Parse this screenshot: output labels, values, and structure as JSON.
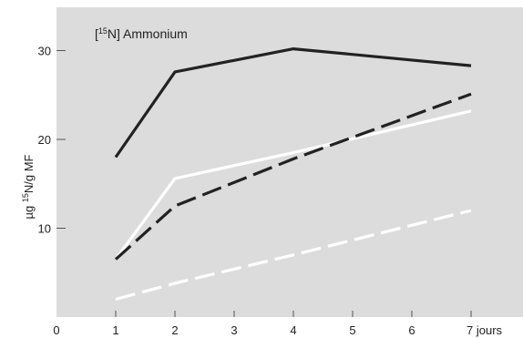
{
  "chart_data": {
    "type": "line",
    "title_prefix": "[",
    "title_superscript": "15",
    "title_suffix": "N] Ammonium",
    "ylabel_prefix": "µg ",
    "ylabel_superscript": "15",
    "ylabel_suffix": "N/g MF",
    "xlim": [
      0,
      7.5
    ],
    "ylim": [
      0,
      35
    ],
    "x_ticks": [
      {
        "value": 0,
        "label": "0"
      },
      {
        "value": 1,
        "label": "1"
      },
      {
        "value": 2,
        "label": "2"
      },
      {
        "value": 3,
        "label": "3"
      },
      {
        "value": 4,
        "label": "4"
      },
      {
        "value": 5,
        "label": "5"
      },
      {
        "value": 6,
        "label": "6"
      },
      {
        "value": 7,
        "label": "7 jours"
      }
    ],
    "y_ticks": [
      {
        "value": 10,
        "label": "10"
      },
      {
        "value": 20,
        "label": "20"
      },
      {
        "value": 30,
        "label": "30"
      }
    ],
    "grid": false,
    "series": [
      {
        "color": "#222222",
        "dash": "",
        "x": [
          1,
          2,
          4,
          7
        ],
        "y": [
          18,
          27.6,
          30.2,
          28.3
        ]
      },
      {
        "color": "#ffffff",
        "dash": "",
        "x": [
          1,
          2,
          4,
          7
        ],
        "y": [
          6.5,
          15.6,
          18.5,
          23.2
        ]
      },
      {
        "color": "#222222",
        "dash": "22 8",
        "x": [
          1,
          2,
          4,
          7
        ],
        "y": [
          6.5,
          12.5,
          17.8,
          25.1
        ]
      },
      {
        "color": "#ffffff",
        "dash": "22 8",
        "x": [
          1,
          2,
          4,
          7
        ],
        "y": [
          2,
          3.8,
          7,
          12
        ]
      }
    ]
  }
}
